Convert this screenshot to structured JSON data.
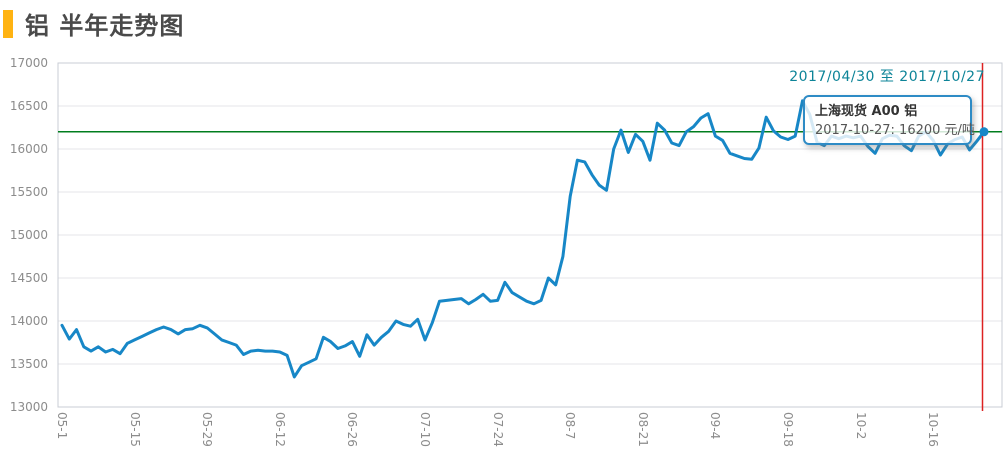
{
  "header": {
    "title": "铝 半年走势图"
  },
  "chart": {
    "date_range": "2017/04/30 至 2017/10/27",
    "tooltip": {
      "title": "上海现货 A00 铝",
      "value_line": "2017-10-27: 16200 元/吨"
    }
  },
  "colors": {
    "accent": "#ffb312",
    "line": "#1787c7",
    "reference_line": "#007d1e",
    "crosshair": "#dd2222",
    "date_range_text": "#0d8498",
    "grid": "#e4e4e8",
    "plot_border": "#c9ccd4",
    "tick_text": "#8c8c8c"
  },
  "chart_data": {
    "type": "line",
    "title": "铝 半年走势图",
    "xlabel": "",
    "ylabel": "元/吨",
    "ylim": [
      13000,
      17000
    ],
    "y_ticks": [
      13000,
      13500,
      14000,
      14500,
      15000,
      15500,
      16000,
      16500,
      17000
    ],
    "x_tick_labels": [
      "05-1",
      "05-15",
      "05-29",
      "06-12",
      "06-26",
      "07-10",
      "07-24",
      "08-7",
      "08-21",
      "09-4",
      "09-18",
      "10-2",
      "10-16"
    ],
    "x_tick_indices": [
      0,
      10,
      20,
      30,
      40,
      50,
      60,
      70,
      80,
      90,
      100,
      110,
      120
    ],
    "grid": true,
    "legend_position": "none",
    "date_range": "2017/04/30 至 2017/10/27",
    "reference_line": {
      "value": 16200
    },
    "end_point": {
      "date": "2017-10-27",
      "value": 16200
    },
    "series": [
      {
        "name": "上海现货 A00 铝",
        "unit": "元/吨",
        "values": [
          13950,
          13790,
          13900,
          13700,
          13650,
          13700,
          13640,
          13670,
          13620,
          13740,
          13780,
          13820,
          13860,
          13900,
          13930,
          13900,
          13850,
          13900,
          13910,
          13950,
          13920,
          13850,
          13780,
          13750,
          13720,
          13610,
          13650,
          13660,
          13650,
          13650,
          13640,
          13600,
          13350,
          13480,
          13520,
          13560,
          13810,
          13760,
          13680,
          13710,
          13760,
          13590,
          13840,
          13720,
          13810,
          13880,
          14000,
          13960,
          13940,
          14020,
          13780,
          13980,
          14230,
          14240,
          14250,
          14260,
          14200,
          14250,
          14310,
          14230,
          14240,
          14450,
          14330,
          14280,
          14230,
          14200,
          14240,
          14500,
          14420,
          14750,
          15450,
          15870,
          15850,
          15700,
          15580,
          15520,
          16000,
          16220,
          15960,
          16170,
          16090,
          15870,
          16300,
          16220,
          16070,
          16040,
          16200,
          16260,
          16360,
          16410,
          16150,
          16100,
          15950,
          15920,
          15890,
          15880,
          16010,
          16370,
          16210,
          16140,
          16110,
          16150,
          16560,
          16400,
          16080,
          16040,
          16150,
          16120,
          16150,
          16130,
          16150,
          16030,
          15950,
          16120,
          16160,
          16150,
          16040,
          15980,
          16150,
          16200,
          16100,
          15930,
          16060,
          16110,
          16140,
          15990,
          16090,
          16200
        ]
      }
    ]
  }
}
